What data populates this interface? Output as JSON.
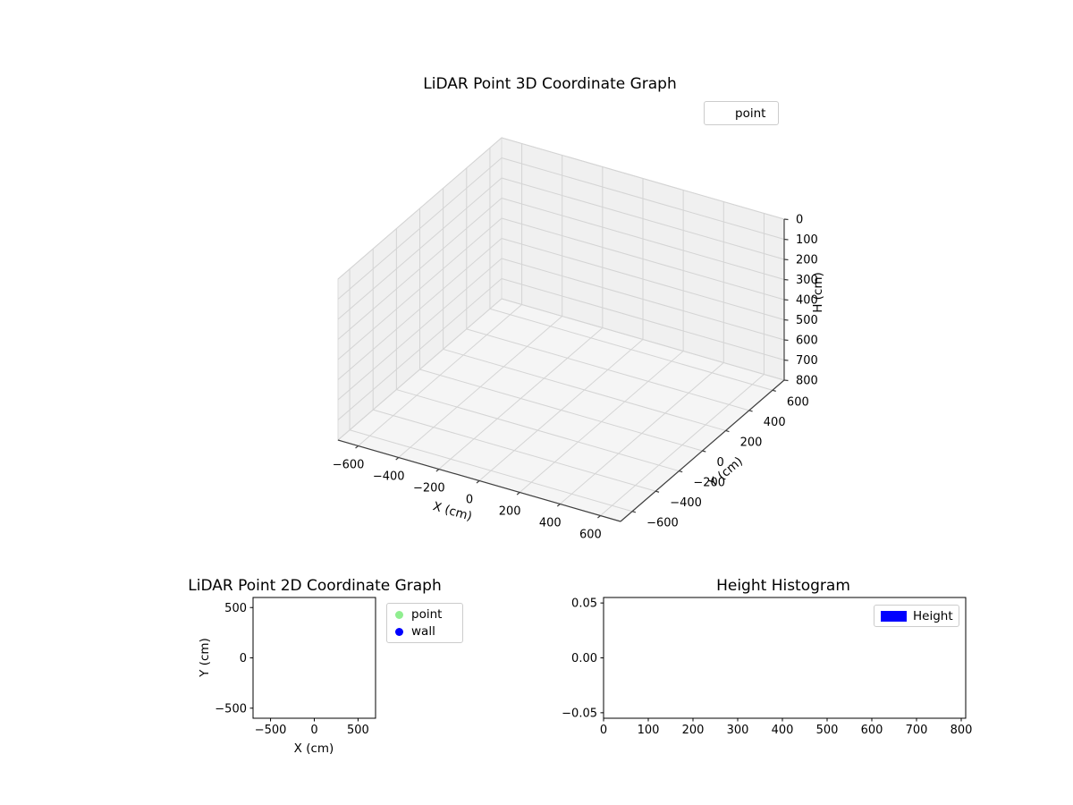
{
  "figure": {
    "background": "#ffffff",
    "text_color": "#000000"
  },
  "chart_data": [
    {
      "id": "lidar-3d",
      "type": "scatter3d",
      "title": "LiDAR Point 3D Coordinate Graph",
      "xlabel": "X (cm)",
      "ylabel": "Y (cm)",
      "zlabel": "H (cm)",
      "xlim": [
        -700,
        700
      ],
      "ylim": [
        -700,
        700
      ],
      "zlim": [
        0,
        800
      ],
      "zaxis_inverted": true,
      "view": {
        "elev": 30,
        "azim": -60
      },
      "grid": true,
      "xticks": [
        -600,
        -400,
        -200,
        0,
        200,
        400,
        600
      ],
      "xtick_labels": [
        "−600",
        "−400",
        "−200",
        "0",
        "200",
        "400",
        "600"
      ],
      "yticks": [
        -600,
        -400,
        -200,
        0,
        200,
        400,
        600
      ],
      "ytick_labels": [
        "−600",
        "−400",
        "−200",
        "0",
        "200",
        "400",
        "600"
      ],
      "zticks": [
        0,
        100,
        200,
        300,
        400,
        500,
        600,
        700,
        800
      ],
      "ztick_labels": [
        "0",
        "100",
        "200",
        "300",
        "400",
        "500",
        "600",
        "700",
        "800"
      ],
      "pane_color": "#f0f0f0",
      "floor_color": "#f5f5f5",
      "grid_color": "#d4d4d4",
      "legend": {
        "position": "upper-right-outside",
        "items": [
          {
            "label": "point"
          }
        ]
      },
      "points": []
    },
    {
      "id": "lidar-2d",
      "type": "scatter",
      "title": "LiDAR Point 2D Coordinate Graph",
      "xlabel": "X (cm)",
      "ylabel": "Y (cm)",
      "xlim": [
        -700,
        700
      ],
      "ylim": [
        -600,
        600
      ],
      "grid": false,
      "xticks": [
        -500,
        0,
        500
      ],
      "xtick_labels": [
        "−500",
        "0",
        "500"
      ],
      "yticks": [
        -500,
        0,
        500
      ],
      "ytick_labels": [
        "−500",
        "0",
        "500"
      ],
      "legend": {
        "position": "outside-right",
        "items": [
          {
            "label": "point",
            "marker": "circle",
            "marker_color": "#90ee90"
          },
          {
            "label": "wall",
            "marker": "circle",
            "marker_color": "#0000ff"
          }
        ]
      },
      "points": []
    },
    {
      "id": "height-histogram",
      "type": "bar",
      "title": "Height Histogram",
      "xlabel": "",
      "ylabel": "",
      "xlim": [
        0,
        810
      ],
      "ylim": [
        -0.055,
        0.055
      ],
      "grid": false,
      "xticks": [
        0,
        100,
        200,
        300,
        400,
        500,
        600,
        700,
        800
      ],
      "xtick_labels": [
        "0",
        "100",
        "200",
        "300",
        "400",
        "500",
        "600",
        "700",
        "800"
      ],
      "yticks": [
        -0.05,
        0,
        0.05
      ],
      "ytick_labels": [
        "−0.05",
        "0.00",
        "0.05"
      ],
      "legend": {
        "position": "upper-right-inside",
        "items": [
          {
            "label": "Height",
            "marker": "patch",
            "marker_color": "#0000ff"
          }
        ]
      },
      "values": []
    }
  ]
}
